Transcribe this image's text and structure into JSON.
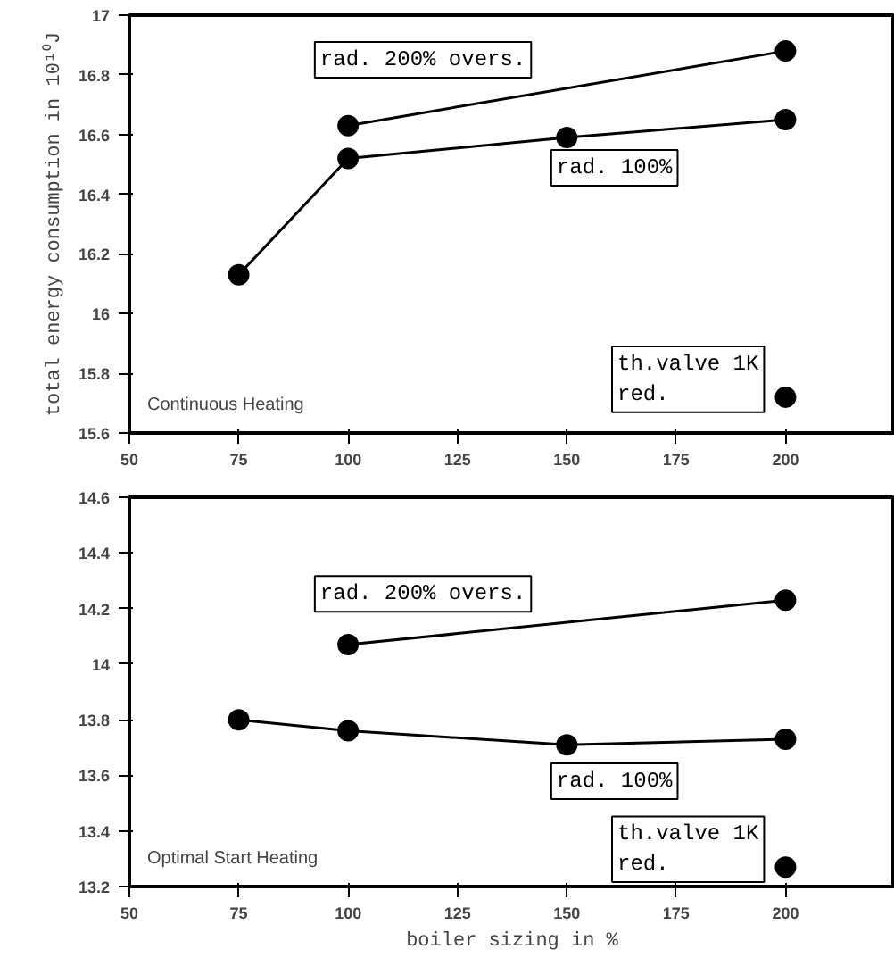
{
  "chart_data": [
    {
      "type": "line",
      "ylabel": "total energy consumption in 10¹⁰J",
      "annotations": [
        "Continuous Heating"
      ],
      "xlim": [
        50,
        225
      ],
      "xticks": [
        50,
        75,
        100,
        125,
        150,
        175,
        200
      ],
      "ylim": [
        15.6,
        17
      ],
      "yticks": [
        15.6,
        15.8,
        16,
        16.2,
        16.4,
        16.6,
        16.8,
        17
      ],
      "grid": false,
      "marker": "circle",
      "line_style": "solid",
      "series": [
        {
          "name": "rad. 200% overs.",
          "color": "#000000",
          "x": [
            100,
            200
          ],
          "values": [
            16.63,
            16.88
          ]
        },
        {
          "name": "rad. 100%",
          "color": "#000000",
          "x": [
            75,
            100,
            150,
            200
          ],
          "values": [
            16.13,
            16.52,
            16.59,
            16.65
          ]
        },
        {
          "name": "th.valve 1K\nred.",
          "type": "scatter",
          "color": "#000000",
          "x": [
            200
          ],
          "values": [
            15.72
          ]
        }
      ]
    },
    {
      "type": "line",
      "xlabel": "boiler sizing in %",
      "annotations": [
        "Optimal Start Heating"
      ],
      "xlim": [
        50,
        225
      ],
      "xticks": [
        50,
        75,
        100,
        125,
        150,
        175,
        200
      ],
      "ylim": [
        13.2,
        14.6
      ],
      "yticks": [
        13.2,
        13.4,
        13.6,
        13.8,
        14,
        14.2,
        14.4,
        14.6
      ],
      "grid": false,
      "marker": "circle",
      "line_style": "solid",
      "series": [
        {
          "name": "rad. 200% overs.",
          "color": "#000000",
          "x": [
            100,
            200
          ],
          "values": [
            14.07,
            14.23
          ]
        },
        {
          "name": "rad. 100%",
          "color": "#000000",
          "x": [
            75,
            100,
            150,
            200
          ],
          "values": [
            13.8,
            13.76,
            13.71,
            13.73
          ]
        },
        {
          "name": "th.valve 1K\nred.",
          "type": "scatter",
          "color": "#000000",
          "x": [
            200
          ],
          "values": [
            13.27
          ]
        }
      ]
    }
  ]
}
